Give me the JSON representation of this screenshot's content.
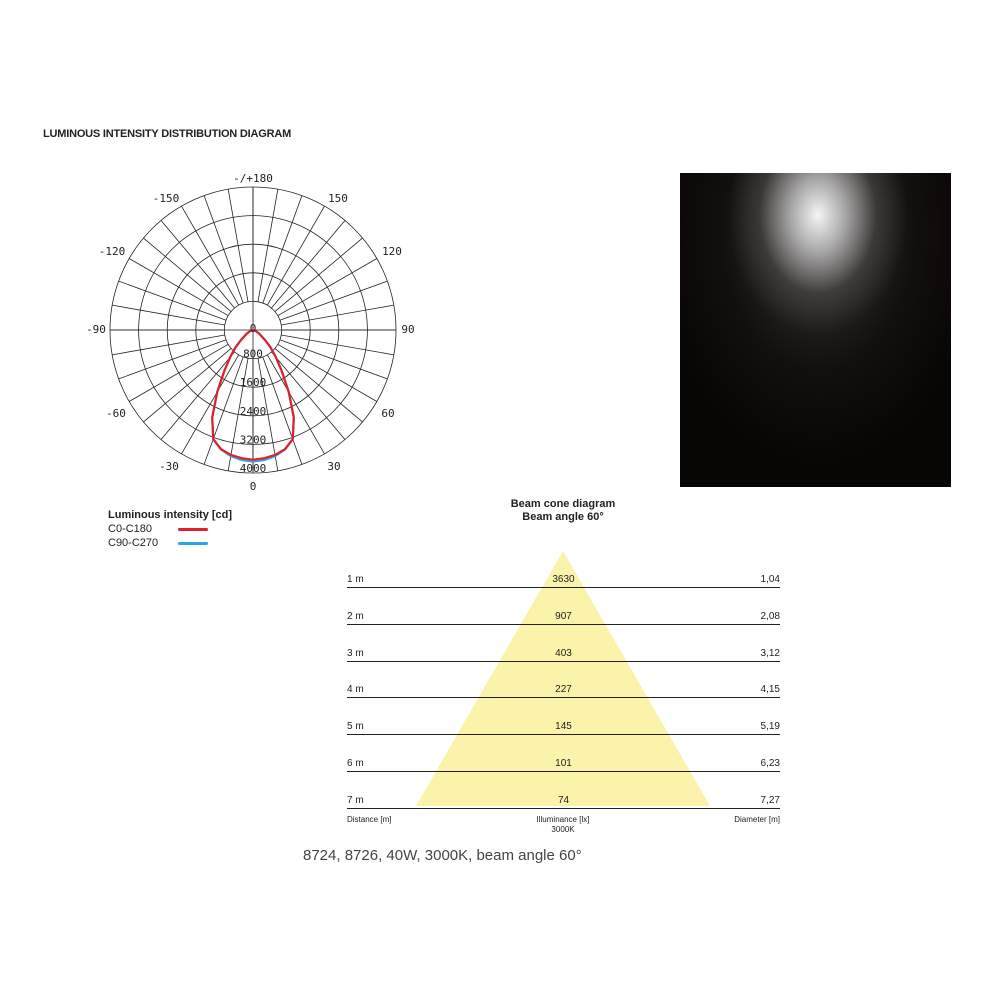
{
  "title": "LUMINOUS INTENSITY DISTRIBUTION DIAGRAM",
  "polar": {
    "angle_labels": {
      "top": "-/+180",
      "m150": "-150",
      "p150": "150",
      "m120": "-120",
      "p120": "120",
      "m90": "-90",
      "p90": "90",
      "m60": "-60",
      "p60": "60",
      "m30": "-30",
      "p30": "30",
      "bottom": "0"
    },
    "radial_labels": [
      "0",
      "800",
      "1600",
      "2400",
      "3200",
      "4000"
    ]
  },
  "chart_data": {
    "type": "polar",
    "unit": "cd",
    "radial_range": [
      0,
      4000
    ],
    "angles_deg": [
      0,
      5,
      10,
      15,
      20,
      25,
      30,
      35,
      40,
      45,
      50,
      60,
      70,
      80,
      90
    ],
    "series": [
      {
        "name": "C0-C180",
        "color": "#e0202a",
        "values": [
          3630,
          3600,
          3550,
          3450,
          3250,
          2700,
          2000,
          1400,
          1000,
          700,
          450,
          200,
          80,
          20,
          0
        ]
      },
      {
        "name": "C90-C270",
        "color": "#29a8e0",
        "values": [
          3680,
          3650,
          3580,
          3460,
          3250,
          2700,
          2000,
          1400,
          1000,
          700,
          450,
          200,
          80,
          20,
          0
        ]
      }
    ]
  },
  "legend": {
    "title": "Luminous intensity [cd]",
    "items": [
      {
        "label": "C0-C180",
        "color": "#e0202a"
      },
      {
        "label": "C90-C270",
        "color": "#29a8e0"
      }
    ]
  },
  "cone": {
    "title": "Beam cone diagram",
    "subtitle": "Beam angle 60°",
    "color": "#fbf3aa",
    "rows": [
      {
        "distance": "1 m",
        "illuminance": "3630",
        "diameter": "1,04"
      },
      {
        "distance": "2 m",
        "illuminance": "907",
        "diameter": "2,08"
      },
      {
        "distance": "3 m",
        "illuminance": "403",
        "diameter": "3,12"
      },
      {
        "distance": "4 m",
        "illuminance": "227",
        "diameter": "4,15"
      },
      {
        "distance": "5 m",
        "illuminance": "145",
        "diameter": "5,19"
      },
      {
        "distance": "6 m",
        "illuminance": "101",
        "diameter": "6,23"
      },
      {
        "distance": "7 m",
        "illuminance": "74",
        "diameter": "7,27"
      }
    ],
    "footer": {
      "distance": "Distance [m]",
      "illuminance": "Illuminance [lx]",
      "cct": "3000K",
      "diameter": "Diameter [m]"
    }
  },
  "caption": "8724, 8726, 40W, 3000K, beam angle 60°"
}
